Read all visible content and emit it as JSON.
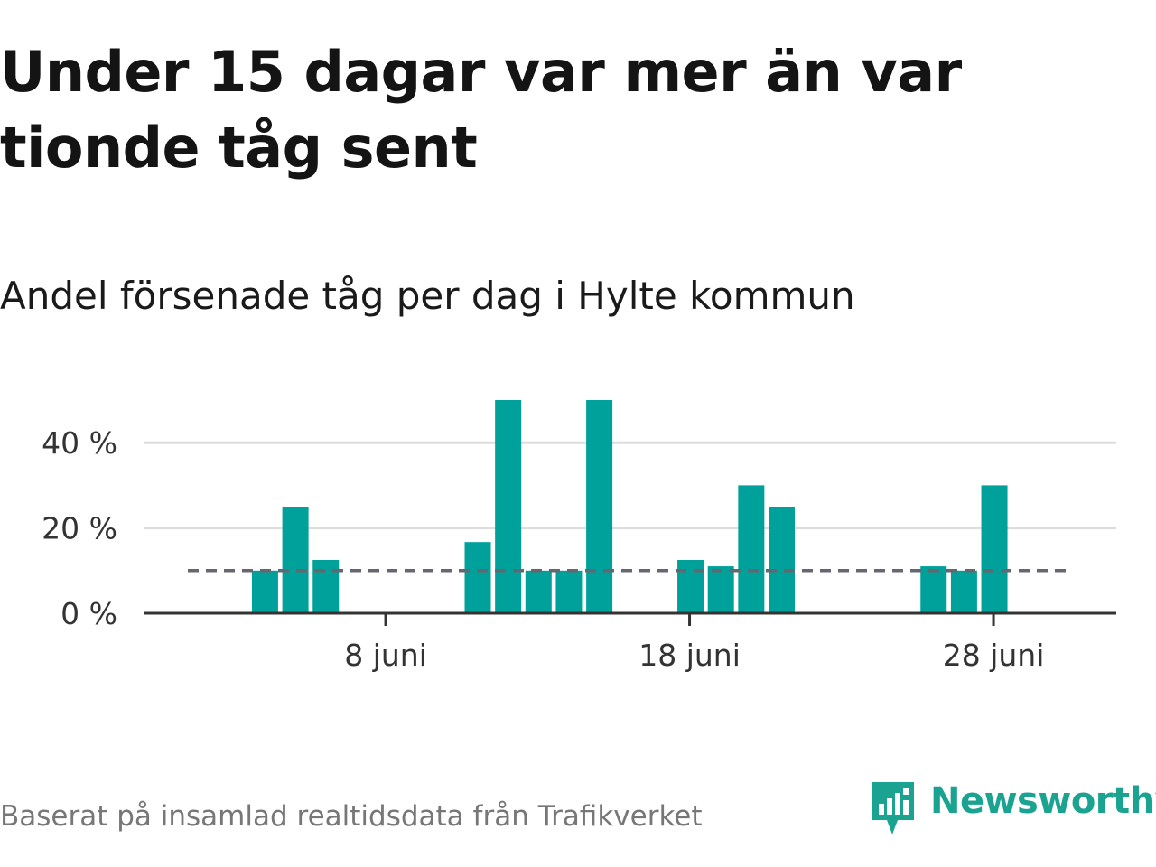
{
  "title": "Under 15 dagar var mer än var tionde tåg sent",
  "subtitle": "Andel försenade tåg per dag i Hylte kommun",
  "footer": "Baserat på insamlad realtidsdata från Trafikverket",
  "logo_text": "Newsworthy",
  "colors": {
    "bar": "#00a19a",
    "reference_line": "#666670",
    "gridline": "#dddddd",
    "axis": "#333333",
    "logo": "#1ba391"
  },
  "chart_data": {
    "type": "bar",
    "x": [
      "2022-06-01",
      "2022-06-02",
      "2022-06-03",
      "2022-06-04",
      "2022-06-05",
      "2022-06-06",
      "2022-06-07",
      "2022-06-08",
      "2022-06-09",
      "2022-06-10",
      "2022-06-11",
      "2022-06-12",
      "2022-06-13",
      "2022-06-14",
      "2022-06-15",
      "2022-06-16",
      "2022-06-17",
      "2022-06-18",
      "2022-06-19",
      "2022-06-20",
      "2022-06-21",
      "2022-06-22",
      "2022-06-23",
      "2022-06-24",
      "2022-06-25",
      "2022-06-26",
      "2022-06-27",
      "2022-06-28",
      "2022-06-29"
    ],
    "values": [
      null,
      null,
      null,
      10,
      25,
      12.5,
      0,
      0,
      0,
      0,
      16.7,
      50,
      10,
      10,
      50,
      null,
      null,
      12.5,
      11,
      30,
      25,
      null,
      null,
      null,
      null,
      11,
      10,
      30,
      null
    ],
    "reference_value": 10,
    "yticks": [
      0,
      20,
      40
    ],
    "ytick_labels": [
      "0 %",
      "20 %",
      "40 %"
    ],
    "xticks": [
      "2022-06-08",
      "2022-06-18",
      "2022-06-28"
    ],
    "xtick_labels": [
      "8 juni",
      "18 juni",
      "28 juni"
    ],
    "ylim": [
      0,
      50
    ],
    "grid": true
  }
}
